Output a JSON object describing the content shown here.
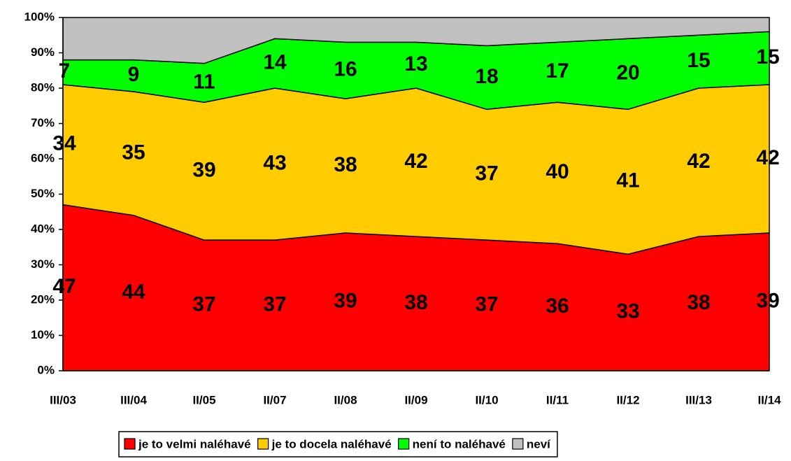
{
  "chart_data": {
    "type": "stacked_area",
    "categories": [
      "III/03",
      "III/04",
      "II/05",
      "II/07",
      "II/08",
      "II/09",
      "II/10",
      "II/11",
      "II/12",
      "III/13",
      "II/14"
    ],
    "series": [
      {
        "name": "je to velmi naléhavé",
        "color": "#ff0000",
        "values": [
          47,
          44,
          37,
          37,
          39,
          38,
          37,
          36,
          33,
          38,
          39
        ],
        "labels": true
      },
      {
        "name": "je to docela naléhavé",
        "color": "#ffcc00",
        "values": [
          34,
          35,
          39,
          43,
          38,
          42,
          37,
          40,
          41,
          42,
          42
        ],
        "labels": true
      },
      {
        "name": "není to naléhavé",
        "color": "#00ff00",
        "values": [
          7,
          9,
          11,
          14,
          16,
          13,
          18,
          17,
          20,
          15,
          15
        ],
        "labels": true
      },
      {
        "name": "neví",
        "color": "#c0c0c0",
        "values": [
          12,
          12,
          13,
          6,
          7,
          7,
          8,
          7,
          6,
          5,
          4
        ],
        "labels": false
      }
    ],
    "ylim": [
      0,
      100
    ],
    "yticks": [
      {
        "value": 0,
        "label": "0%"
      },
      {
        "value": 10,
        "label": "10%"
      },
      {
        "value": 20,
        "label": "20%"
      },
      {
        "value": 30,
        "label": "30%"
      },
      {
        "value": 40,
        "label": "40%"
      },
      {
        "value": 50,
        "label": "50%"
      },
      {
        "value": 60,
        "label": "60%"
      },
      {
        "value": 70,
        "label": "70%"
      },
      {
        "value": 80,
        "label": "80%"
      },
      {
        "value": 90,
        "label": "90%"
      },
      {
        "value": 100,
        "label": "100%"
      }
    ],
    "legend": "bottom"
  }
}
